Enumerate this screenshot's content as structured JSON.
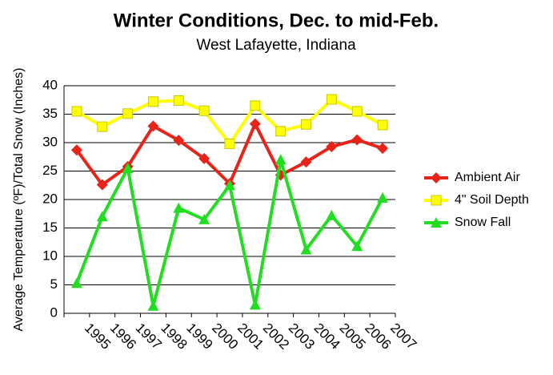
{
  "chart_data": {
    "type": "line",
    "title": "Winter Conditions, Dec. to mid-Feb.",
    "subtitle": "West Lafayette, Indiana",
    "y_label": "Average Temperature (ºF)/Total Snow (Inches)",
    "categories": [
      "1995",
      "1996",
      "1997",
      "1998",
      "1999",
      "2000",
      "2001",
      "2002",
      "2003",
      "2004",
      "2005",
      "2006",
      "2007"
    ],
    "series": [
      {
        "name": "Ambient Air",
        "color": "#e8231a",
        "marker": "diamond",
        "values": [
          28.7,
          22.6,
          25.8,
          32.9,
          30.4,
          27.2,
          22.8,
          33.3,
          24.3,
          26.6,
          29.3,
          30.5,
          29.0
        ]
      },
      {
        "name": "4\" Soil Depth",
        "color": "#ffff00",
        "marker": "square",
        "values": [
          35.5,
          32.8,
          35.1,
          37.2,
          37.4,
          35.6,
          29.8,
          36.5,
          32.0,
          33.2,
          37.6,
          35.5,
          33.1
        ]
      },
      {
        "name": "Snow Fall",
        "color": "#22dd22",
        "marker": "triangle",
        "values": [
          5.3,
          17.0,
          25.5,
          1.3,
          18.5,
          16.5,
          22.5,
          1.5,
          27.0,
          11.2,
          17.2,
          11.8,
          20.3
        ]
      }
    ],
    "ylim": [
      0,
      40
    ],
    "yticks": [
      0,
      5,
      10,
      15,
      20,
      25,
      30,
      35,
      40
    ],
    "grid": true,
    "legend": "right"
  }
}
